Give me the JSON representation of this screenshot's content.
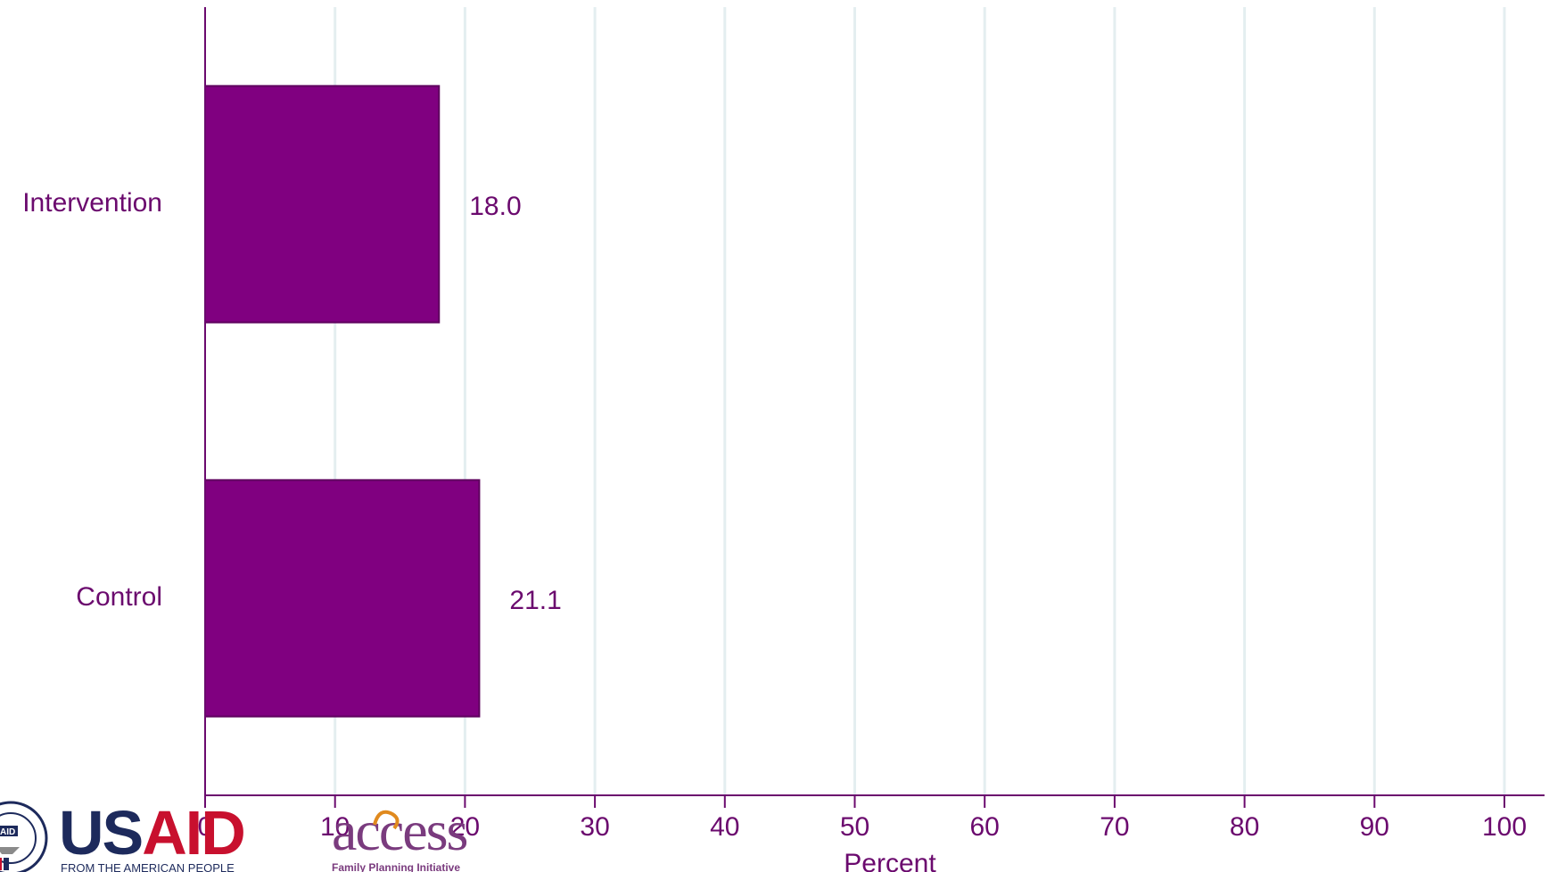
{
  "chart_data": {
    "type": "bar",
    "orientation": "horizontal",
    "categories": [
      "Intervention",
      "Control"
    ],
    "values": [
      18.0,
      21.1
    ],
    "data_labels": [
      "18.0",
      "21.1"
    ],
    "xlabel": "Percent",
    "ylabel": "",
    "xlim": [
      0,
      100
    ],
    "x_ticks": [
      "0",
      "10",
      "20",
      "30",
      "40",
      "50",
      "60",
      "70",
      "80",
      "90",
      "100"
    ],
    "grid": "vertical",
    "legend": "none",
    "bar_color": "#800080",
    "text_color": "#6b0a6e",
    "grid_color": "#e4eef0"
  },
  "logos": {
    "usaid": {
      "wordmark": "USAID",
      "tagline": "FROM THE AMERICAN PEOPLE",
      "seal_text": "UNITED STATES AGENCY"
    },
    "access": {
      "wordmark": "access",
      "tagline": "Family Planning Initiative"
    }
  }
}
